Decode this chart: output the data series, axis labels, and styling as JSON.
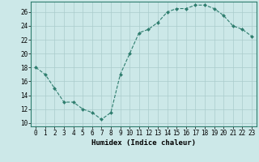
{
  "x": [
    0,
    1,
    2,
    3,
    4,
    5,
    6,
    7,
    8,
    9,
    10,
    11,
    12,
    13,
    14,
    15,
    16,
    17,
    18,
    19,
    20,
    21,
    22,
    23
  ],
  "y": [
    18,
    17,
    15,
    13,
    13,
    12,
    11.5,
    10.5,
    11.5,
    17,
    20,
    23,
    23.5,
    24.5,
    26,
    26.5,
    26.5,
    27,
    27,
    26.5,
    25.5,
    24,
    23.5,
    22.5
  ],
  "line_color": "#2e7d6e",
  "marker_color": "#2e7d6e",
  "bg_color": "#cce8e8",
  "grid_color": "#aacccc",
  "xlabel": "Humidex (Indice chaleur)",
  "xlim": [
    -0.5,
    23.5
  ],
  "ylim": [
    9.5,
    27.5
  ],
  "yticks": [
    10,
    12,
    14,
    16,
    18,
    20,
    22,
    24,
    26
  ],
  "xticks": [
    0,
    1,
    2,
    3,
    4,
    5,
    6,
    7,
    8,
    9,
    10,
    11,
    12,
    13,
    14,
    15,
    16,
    17,
    18,
    19,
    20,
    21,
    22,
    23
  ],
  "xlabel_fontsize": 6.5,
  "tick_fontsize": 5.5
}
